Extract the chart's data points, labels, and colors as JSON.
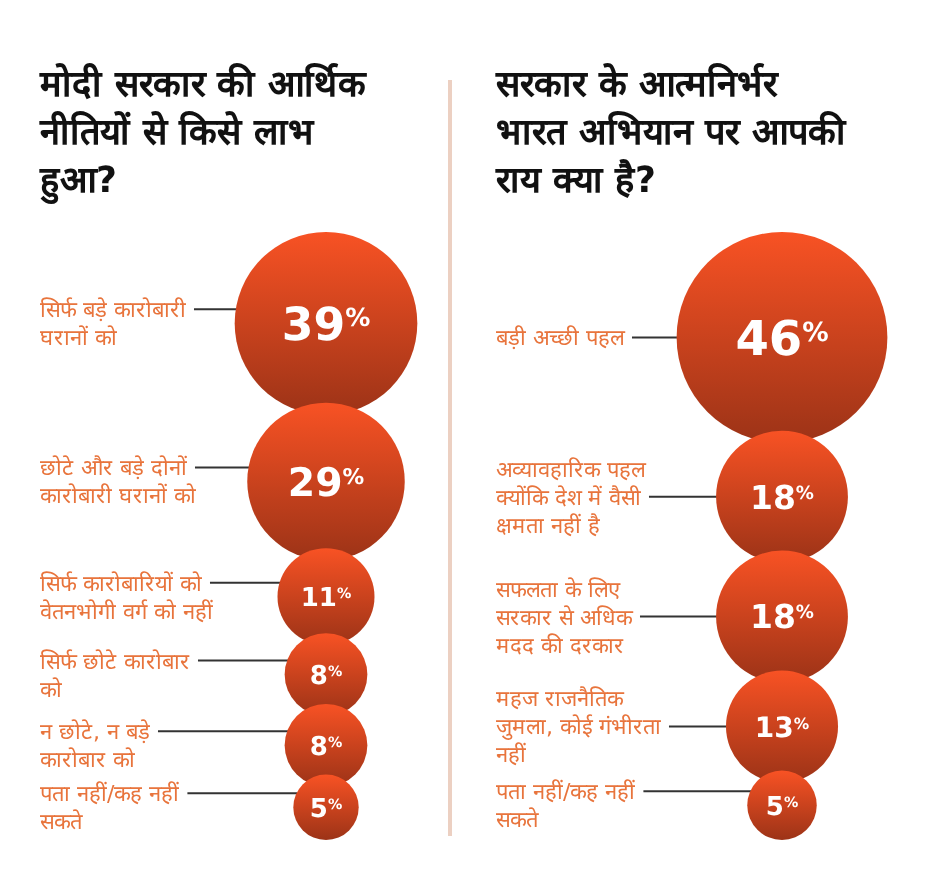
{
  "chart_data": [
    {
      "type": "other",
      "title": "मोदी सरकार की आर्थिक नीतियों से किसे लाभ हुआ?",
      "categories": [
        "सिर्फ बड़े कारोबारी घरानों को",
        "छोटे और बड़े दोनों कारोबारी घरानों को",
        "सिर्फ कारोबारियों को वेतनभोगी वर्ग को नहीं",
        "सिर्फ छोटे कारोबार को",
        "न छोटे, न बड़े कारोबार को",
        "पता नहीं/कह नहीं सकते"
      ],
      "values": [
        39,
        29,
        11,
        8,
        8,
        5
      ],
      "value_labels": [
        "39$^{%}$",
        "29$^{%}$",
        "11$^{%}$",
        "8$^{%}$",
        "8$^{%}$",
        "5$^{%}$"
      ],
      "color": "#c8421d"
    },
    {
      "type": "other",
      "title": "सरकार के आत्मनिर्भर भारत अभियान पर आपकी राय क्या है?",
      "categories": [
        "बड़ी अच्छी पहल",
        "अव्यावहारिक पहल क्योंकि देश में वैसी क्षमता नहीं है",
        "सफलता के लिए सरकार से अधिक मदद की दरकार",
        "महज राजनैतिक जुमला, कोई गंभीरता नहीं",
        "पता नहीं/कह नहीं सकते"
      ],
      "values": [
        46,
        18,
        18,
        13,
        5
      ],
      "value_labels": [
        "46$^{%}$",
        "18$^{%}$",
        "18$^{%}$",
        "13$^{%}$",
        "5$^{%}$"
      ],
      "color": "#c8421d"
    }
  ]
}
